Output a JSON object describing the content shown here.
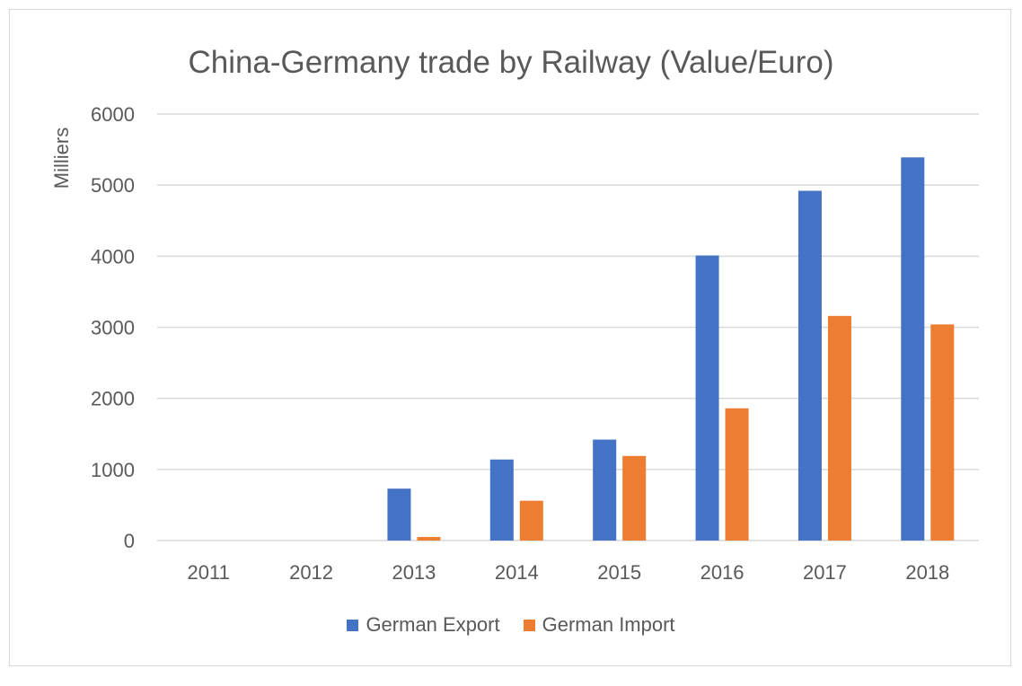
{
  "chart_data": {
    "type": "bar",
    "title": "China-Germany trade by Railway (Value/Euro)",
    "xlabel": "",
    "ylabel": "Milliers",
    "ylim": [
      0,
      6000
    ],
    "yticks": [
      "0",
      "1000",
      "2000",
      "3000",
      "4000",
      "5000",
      "6000"
    ],
    "grid": true,
    "legend": "bottom",
    "categories": [
      "2011",
      "2012",
      "2013",
      "2014",
      "2015",
      "2016",
      "2017",
      "2018"
    ],
    "series": [
      {
        "name": "German Export",
        "color": "#4472c4",
        "values": [
          0,
          0,
          730,
          1140,
          1420,
          4010,
          4920,
          5390
        ]
      },
      {
        "name": "German Import",
        "color": "#ed7d31",
        "values": [
          0,
          0,
          50,
          560,
          1190,
          1860,
          3160,
          3040
        ]
      }
    ]
  }
}
